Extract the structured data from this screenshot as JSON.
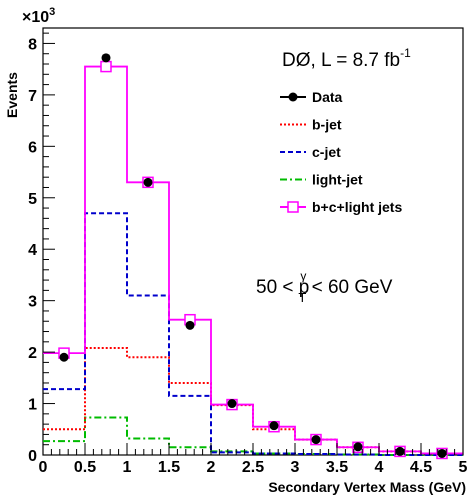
{
  "chart_data": {
    "type": "line",
    "xlabel": "Secondary Vertex Mass (GeV)",
    "ylabel": "Events",
    "y_multiplier": "×10",
    "y_multiplier_exp": "3",
    "xlim": [
      0,
      5
    ],
    "ylim": [
      0,
      8.3
    ],
    "x_ticks": [
      "0",
      "0.5",
      "1",
      "1.5",
      "2",
      "2.5",
      "3",
      "3.5",
      "4",
      "4.5",
      "5"
    ],
    "y_ticks": [
      "0",
      "1",
      "2",
      "3",
      "4",
      "5",
      "6",
      "7",
      "8"
    ],
    "bin_edges": [
      0,
      0.5,
      1,
      1.5,
      2,
      2.5,
      3,
      3.5,
      4,
      4.5,
      5
    ],
    "series": [
      {
        "name": "Data",
        "style": "points",
        "color": "#000000",
        "x": [
          0.25,
          0.75,
          1.25,
          1.75,
          2.25,
          2.75,
          3.25,
          3.75,
          4.25,
          4.75
        ],
        "values": [
          1.9,
          7.72,
          5.3,
          2.52,
          1.0,
          0.57,
          0.3,
          0.16,
          0.07,
          0.03
        ]
      },
      {
        "name": "b-jet",
        "style": "hist",
        "color": "#ff0000",
        "dash": "2,2",
        "values": [
          0.5,
          2.08,
          1.9,
          1.4,
          0.97,
          0.5,
          0.3,
          0.15,
          0.07,
          0.03
        ]
      },
      {
        "name": "c-jet",
        "style": "hist",
        "color": "#0000cc",
        "dash": "5,3",
        "values": [
          1.28,
          4.7,
          3.1,
          1.15,
          0.05,
          0.03,
          0.02,
          0.01,
          0.0,
          0.0
        ]
      },
      {
        "name": "light-jet",
        "style": "hist",
        "color": "#00bb00",
        "dash": "7,3,2,3",
        "values": [
          0.27,
          0.73,
          0.32,
          0.15,
          0.07,
          0.03,
          0.02,
          0.01,
          0.0,
          0.0
        ]
      },
      {
        "name": "b+c+light jets",
        "style": "hist-markers",
        "color": "#ff00ff",
        "values": [
          1.98,
          7.55,
          5.3,
          2.63,
          0.98,
          0.55,
          0.3,
          0.15,
          0.07,
          0.03
        ]
      }
    ],
    "annotations": {
      "experiment": "DØ, L = 8.7 fb",
      "lumi_exp": "-1",
      "cut_left": "50 < p",
      "cut_sup": "γ",
      "cut_sub": "T",
      "cut_right": " < 60 GeV"
    },
    "legend_position": "top-right"
  }
}
